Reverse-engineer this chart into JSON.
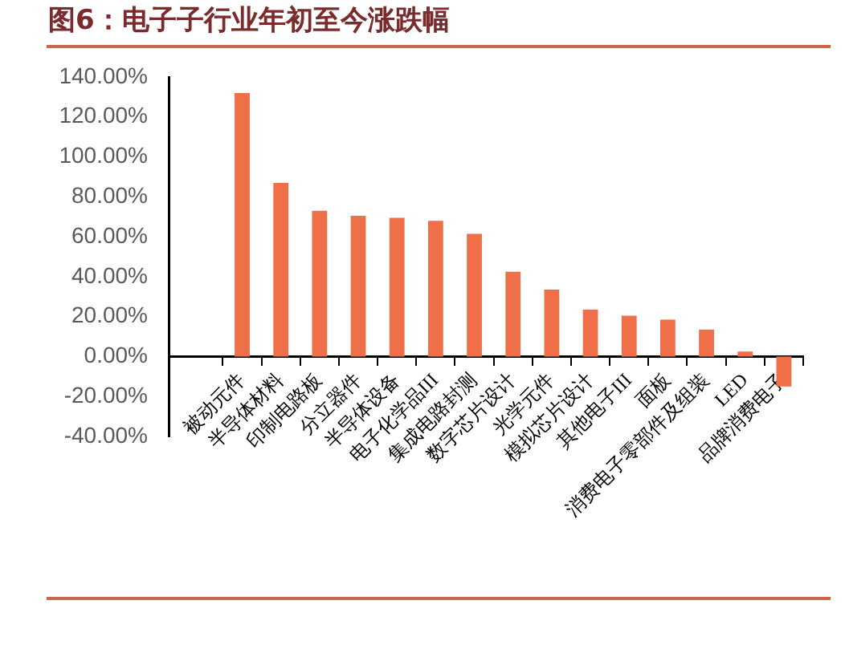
{
  "chart_data": {
    "type": "bar",
    "title": "图6：电子子行业年初至今涨跌幅",
    "categories": [
      "被动元件",
      "半导体材料",
      "印制电路板",
      "分立器件",
      "半导体设备",
      "电子化学品III",
      "集成电路封测",
      "数字芯片设计",
      "光学元件",
      "模拟芯片设计",
      "其他电子III",
      "面板",
      "消费电子零部件及组装",
      "LED",
      "品牌消费电子"
    ],
    "values": [
      132,
      87,
      73,
      70.5,
      69.5,
      68,
      61.5,
      42.5,
      33.5,
      23.5,
      20.5,
      18.5,
      13.5,
      2.5,
      -15
    ],
    "color": "#ef7048",
    "ylim": [
      -40,
      140
    ],
    "yticks": [
      {
        "value": -40,
        "label": "-40.00%"
      },
      {
        "value": -20,
        "label": "-20.00%"
      },
      {
        "value": 0,
        "label": "0.00%"
      },
      {
        "value": 20,
        "label": "20.00%"
      },
      {
        "value": 40,
        "label": "40.00%"
      },
      {
        "value": 60,
        "label": "60.00%"
      },
      {
        "value": 80,
        "label": "80.00%"
      },
      {
        "value": 100,
        "label": "100.00%"
      },
      {
        "value": 120,
        "label": "120.00%"
      },
      {
        "value": 140,
        "label": "140.00%"
      }
    ]
  }
}
